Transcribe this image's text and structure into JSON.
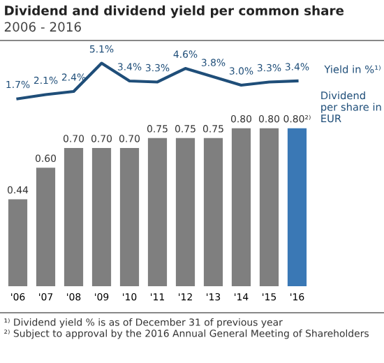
{
  "chart_data": [
    {
      "type": "line",
      "title": "Dividend and dividend yield per common share",
      "subtitle": "2006 - 2016",
      "categories": [
        null,
        null,
        null,
        null,
        null,
        null,
        null,
        null,
        null,
        null,
        null
      ],
      "series": [
        {
          "name": "Yield in %¹⁾",
          "color": "#1f4e79",
          "values": [
            1.7,
            2.1,
            2.4,
            5.1,
            3.4,
            3.3,
            4.6,
            3.8,
            3.0,
            3.3,
            3.4
          ],
          "value_labels": [
            "1.7%",
            "2.1%",
            "2.4%",
            "5.1%",
            "3.4%",
            "3.3%",
            "4.6%",
            "3.8%",
            "3.0%",
            "3.3%",
            "3.4%"
          ]
        }
      ],
      "tick_labels": false,
      "grid": false,
      "legend": false,
      "marker": "none"
    },
    {
      "type": "bar",
      "categories": [
        "'06",
        "'07",
        "'08",
        "'09",
        "'10",
        "'11",
        "'12",
        "'13",
        "'14",
        "'15",
        "'16"
      ],
      "series": [
        {
          "name": "Dividend per share in EUR",
          "colors": [
            "#7f7f7f",
            "#7f7f7f",
            "#7f7f7f",
            "#7f7f7f",
            "#7f7f7f",
            "#7f7f7f",
            "#7f7f7f",
            "#7f7f7f",
            "#7f7f7f",
            "#7f7f7f",
            "#3a78b5"
          ],
          "values": [
            0.44,
            0.6,
            0.7,
            0.7,
            0.7,
            0.75,
            0.75,
            0.75,
            0.8,
            0.8,
            0.8
          ],
          "value_labels": [
            "0.44",
            "0.60",
            "0.70",
            "0.70",
            "0.70",
            "0.75",
            "0.75",
            "0.75",
            "0.80",
            "0.80",
            "0.80²⁾"
          ]
        }
      ],
      "tick_labels": "x",
      "grid": false,
      "legend": false,
      "annotations": [
        "¹⁾ Dividend yield % is as of December 31 of previous year",
        "²⁾ Subject to approval by the 2016 Annual General Meeting of Shareholders"
      ]
    }
  ]
}
